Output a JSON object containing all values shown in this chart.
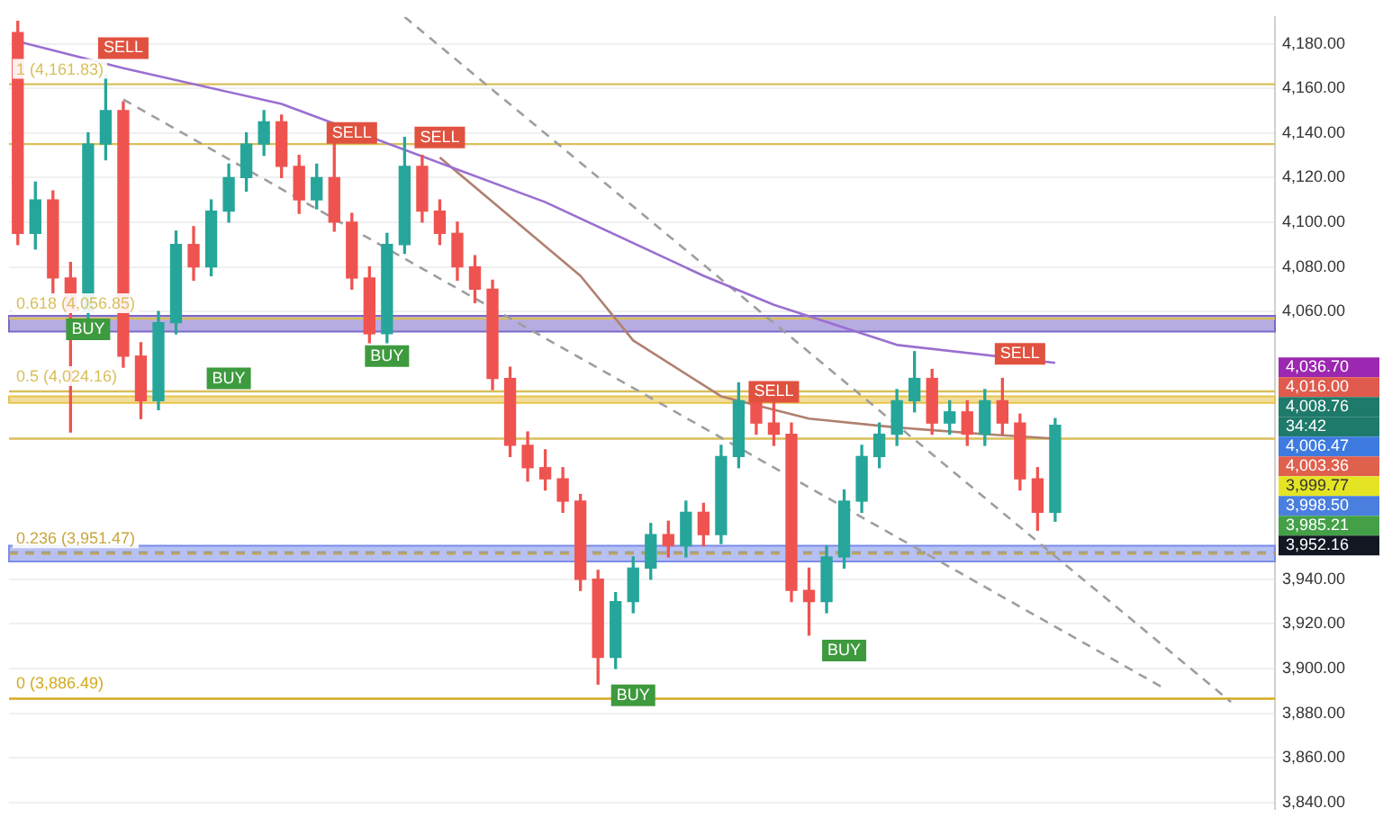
{
  "chart_data": {
    "type": "candlestick",
    "categories": [
      null,
      null,
      null,
      null,
      null,
      null,
      null,
      null,
      null,
      null,
      null,
      null,
      null,
      null,
      null,
      null,
      null,
      null,
      null,
      null,
      null,
      null,
      null,
      null,
      null,
      null,
      null,
      null,
      null,
      null,
      null,
      null,
      null,
      null,
      null,
      null,
      null,
      null,
      null,
      null,
      null,
      null,
      null,
      null,
      null,
      null,
      null,
      null,
      null,
      null,
      null,
      null,
      null,
      null,
      null,
      null,
      null,
      null,
      null,
      null,
      null,
      null,
      null,
      null,
      null,
      null,
      null,
      null,
      null,
      null,
      null,
      null
    ],
    "ohlc": [
      [
        4185,
        4190,
        4090,
        4095
      ],
      [
        4095,
        4118,
        4088,
        4110
      ],
      [
        4110,
        4114,
        4068,
        4075
      ],
      [
        4075,
        4082,
        4006,
        4060
      ],
      [
        4060,
        4140,
        4055,
        4135
      ],
      [
        4135,
        4166,
        4128,
        4150
      ],
      [
        4150,
        4154,
        4035,
        4040
      ],
      [
        4040,
        4046,
        4012,
        4020
      ],
      [
        4020,
        4060,
        4016,
        4055
      ],
      [
        4055,
        4096,
        4050,
        4090
      ],
      [
        4090,
        4098,
        4074,
        4080
      ],
      [
        4080,
        4110,
        4076,
        4105
      ],
      [
        4105,
        4126,
        4100,
        4120
      ],
      [
        4120,
        4140,
        4114,
        4135
      ],
      [
        4135,
        4150,
        4130,
        4145
      ],
      [
        4145,
        4148,
        4120,
        4125
      ],
      [
        4125,
        4130,
        4104,
        4110
      ],
      [
        4110,
        4126,
        4106,
        4120
      ],
      [
        4120,
        4140,
        4096,
        4100
      ],
      [
        4100,
        4104,
        4070,
        4075
      ],
      [
        4075,
        4080,
        4046,
        4050
      ],
      [
        4050,
        4095,
        4046,
        4090
      ],
      [
        4090,
        4138,
        4086,
        4125
      ],
      [
        4125,
        4130,
        4100,
        4105
      ],
      [
        4105,
        4110,
        4090,
        4095
      ],
      [
        4095,
        4100,
        4074,
        4080
      ],
      [
        4080,
        4085,
        4064,
        4070
      ],
      [
        4070,
        4074,
        4025,
        4030
      ],
      [
        4030,
        4035,
        3995,
        4000
      ],
      [
        4000,
        4006,
        3984,
        3990
      ],
      [
        3990,
        3998,
        3980,
        3985
      ],
      [
        3985,
        3990,
        3970,
        3975
      ],
      [
        3975,
        3978,
        3935,
        3940
      ],
      [
        3940,
        3944,
        3893,
        3905
      ],
      [
        3905,
        3934,
        3900,
        3930
      ],
      [
        3930,
        3950,
        3925,
        3945
      ],
      [
        3945,
        3965,
        3940,
        3960
      ],
      [
        3960,
        3966,
        3950,
        3955
      ],
      [
        3955,
        3975,
        3950,
        3970
      ],
      [
        3970,
        3974,
        3955,
        3960
      ],
      [
        3960,
        4000,
        3956,
        3995
      ],
      [
        3995,
        4028,
        3990,
        4020
      ],
      [
        4020,
        4024,
        4005,
        4010
      ],
      [
        4010,
        4020,
        4000,
        4005
      ],
      [
        4005,
        4010,
        3930,
        3935
      ],
      [
        3935,
        3945,
        3915,
        3930
      ],
      [
        3930,
        3955,
        3925,
        3950
      ],
      [
        3950,
        3980,
        3945,
        3975
      ],
      [
        3975,
        4000,
        3970,
        3995
      ],
      [
        3995,
        4010,
        3990,
        4005
      ],
      [
        4005,
        4025,
        4000,
        4020
      ],
      [
        4020,
        4042,
        4015,
        4030
      ],
      [
        4030,
        4034,
        4005,
        4010
      ],
      [
        4010,
        4020,
        4005,
        4015
      ],
      [
        4015,
        4020,
        4000,
        4005
      ],
      [
        4005,
        4025,
        4000,
        4020
      ],
      [
        4020,
        4030,
        4005,
        4010
      ],
      [
        4010,
        4014,
        3980,
        3985
      ],
      [
        3985,
        3990,
        3962,
        3970
      ],
      [
        3970,
        4012,
        3966,
        4009
      ],
      null,
      null,
      null,
      null,
      null,
      null,
      null,
      null,
      null,
      null,
      null,
      null
    ],
    "series": [
      {
        "type": "line",
        "color": "#9a6fd0",
        "values": [
          4181,
          null,
          null,
          null,
          null,
          null,
          4169,
          null,
          null,
          null,
          null,
          null,
          null,
          null,
          null,
          4153,
          null,
          null,
          null,
          null,
          null,
          null,
          null,
          null,
          null,
          null,
          null,
          null,
          null,
          null,
          4109,
          null,
          null,
          null,
          null,
          null,
          null,
          null,
          null,
          4076,
          null,
          null,
          null,
          4063,
          null,
          null,
          null,
          null,
          null,
          null,
          4045,
          null,
          null,
          null,
          null,
          null,
          null,
          null,
          null,
          4037,
          null,
          null,
          null,
          null,
          null,
          null,
          null,
          null,
          null,
          null,
          null,
          null
        ]
      },
      {
        "type": "line",
        "color": "#b08070",
        "values": [
          null,
          null,
          null,
          null,
          null,
          null,
          null,
          null,
          null,
          null,
          null,
          null,
          null,
          null,
          null,
          null,
          null,
          null,
          null,
          null,
          null,
          null,
          null,
          null,
          4129,
          null,
          null,
          null,
          null,
          null,
          null,
          null,
          4076,
          null,
          null,
          4047,
          null,
          null,
          null,
          null,
          4022,
          null,
          null,
          null,
          null,
          4012,
          null,
          null,
          null,
          null,
          4008,
          null,
          null,
          null,
          null,
          4005,
          null,
          null,
          null,
          4003,
          null,
          null,
          null,
          null,
          null,
          null,
          null,
          null,
          null,
          null,
          null,
          null
        ]
      },
      {
        "type": "line",
        "color": "#9e9e9e",
        "line_style": "dashed",
        "values": [
          null,
          null,
          null,
          null,
          null,
          null,
          4155,
          null,
          null,
          null,
          null,
          null,
          null,
          null,
          null,
          null,
          null,
          null,
          null,
          null,
          null,
          null,
          null,
          null,
          null,
          null,
          null,
          null,
          null,
          null,
          null,
          null,
          null,
          null,
          null,
          null,
          null,
          null,
          null,
          null,
          null,
          null,
          null,
          null,
          null,
          null,
          null,
          null,
          null,
          null,
          null,
          null,
          null,
          null,
          null,
          null,
          null,
          null,
          null,
          null,
          null,
          null,
          null,
          null,
          null,
          3892,
          null,
          null,
          null,
          null,
          null,
          null
        ]
      },
      {
        "type": "line",
        "color": "#9e9e9e",
        "line_style": "dashed",
        "values": [
          null,
          null,
          null,
          null,
          null,
          null,
          null,
          null,
          null,
          null,
          null,
          null,
          null,
          null,
          null,
          null,
          null,
          null,
          null,
          null,
          null,
          null,
          4192,
          null,
          null,
          null,
          null,
          null,
          null,
          null,
          null,
          null,
          null,
          null,
          null,
          null,
          null,
          null,
          null,
          null,
          null,
          null,
          null,
          null,
          null,
          null,
          null,
          null,
          null,
          null,
          null,
          null,
          null,
          null,
          null,
          null,
          null,
          null,
          null,
          null,
          null,
          null,
          null,
          null,
          null,
          null,
          null,
          null,
          null,
          3885,
          null,
          null
        ]
      },
      {
        "type": "scatter",
        "name": "SELL",
        "color": "#e0523f",
        "marker": "square",
        "values": [
          null,
          null,
          null,
          null,
          null,
          null,
          4178,
          null,
          null,
          null,
          null,
          null,
          null,
          null,
          null,
          null,
          null,
          null,
          null,
          4140,
          null,
          null,
          null,
          null,
          4138,
          null,
          null,
          null,
          null,
          null,
          null,
          null,
          null,
          null,
          null,
          null,
          null,
          null,
          null,
          null,
          null,
          null,
          null,
          4024,
          null,
          null,
          null,
          null,
          null,
          null,
          null,
          null,
          null,
          null,
          null,
          null,
          null,
          4041,
          null,
          null,
          null,
          null,
          null,
          null,
          null,
          null,
          null,
          null,
          null,
          null,
          null,
          null
        ]
      },
      {
        "type": "scatter",
        "name": "BUY",
        "color": "#3e9a3e",
        "marker": "square",
        "values": [
          null,
          null,
          null,
          null,
          4052,
          null,
          null,
          null,
          null,
          null,
          null,
          null,
          4030,
          null,
          null,
          null,
          null,
          null,
          null,
          null,
          null,
          4040,
          null,
          null,
          null,
          null,
          null,
          null,
          null,
          null,
          null,
          null,
          null,
          null,
          null,
          3888,
          null,
          null,
          null,
          null,
          null,
          null,
          null,
          null,
          null,
          null,
          null,
          3908,
          null,
          null,
          null,
          null,
          null,
          null,
          null,
          null,
          null,
          null,
          null,
          null,
          null,
          null,
          null,
          null,
          null,
          null,
          null,
          null,
          null,
          null,
          null,
          null
        ]
      }
    ],
    "ylim": [
      3837,
      4192
    ],
    "yticks": [
      {
        "value": 3840,
        "label": "3,840.00"
      },
      {
        "value": 3860,
        "label": "3,860.00"
      },
      {
        "value": 3880,
        "label": "3,880.00"
      },
      {
        "value": 3900,
        "label": "3,900.00"
      },
      {
        "value": 3920,
        "label": "3,920.00"
      },
      {
        "value": 3940,
        "label": "3,940.00"
      },
      {
        "value": 4060,
        "label": "4,060.00"
      },
      {
        "value": 4080,
        "label": "4,080.00"
      },
      {
        "value": 4100,
        "label": "4,100.00"
      },
      {
        "value": 4120,
        "label": "4,120.00"
      },
      {
        "value": 4140,
        "label": "4,140.00"
      },
      {
        "value": 4160,
        "label": "4,160.00"
      },
      {
        "value": 4180,
        "label": "4,180.00"
      }
    ],
    "tick_labels": "y",
    "grid": "y",
    "legend": false,
    "ref_lines": [
      {
        "axis": "y",
        "value": 4161.83,
        "label": "1 (4,161.83)",
        "color": "#d9bf5a"
      },
      {
        "axis": "y",
        "value": 4135,
        "color": "#d9bf5a"
      },
      {
        "axis": "y",
        "value": 4056.85,
        "label": "0.618 (4,056.85)",
        "color": "#d9bf5a"
      },
      {
        "axis": "y",
        "value": 4024.16,
        "label": "0.5 (4,024.16)",
        "color": "#d9bf5a"
      },
      {
        "axis": "y",
        "value": 4003,
        "color": "#d9bf5a"
      },
      {
        "axis": "y",
        "value": 3951.47,
        "label": "0.236 (3,951.47)",
        "color": "#c9a640",
        "line_style": "dashed"
      },
      {
        "axis": "y",
        "value": 3952.16,
        "color": "#9e9e9e",
        "line_style": "dashed"
      },
      {
        "axis": "y",
        "value": 3886.49,
        "label": "0 (3,886.49)",
        "color": "#d4aa20"
      }
    ],
    "bands": [
      {
        "axis": "y",
        "from": 4051,
        "to": 4058,
        "color": "#7b68c8"
      },
      {
        "axis": "y",
        "from": 4019,
        "to": 4022,
        "color": "#e8c34a"
      },
      {
        "axis": "y",
        "from": 3948,
        "to": 3955,
        "color": "#7b8ce8"
      }
    ],
    "annotations": [
      "4,036.70",
      "4,016.00",
      "4,008.76",
      "34:42",
      "4,006.47",
      "4,003.36",
      "3,999.77",
      "3,998.50",
      "3,985.21",
      "3,952.16"
    ]
  }
}
